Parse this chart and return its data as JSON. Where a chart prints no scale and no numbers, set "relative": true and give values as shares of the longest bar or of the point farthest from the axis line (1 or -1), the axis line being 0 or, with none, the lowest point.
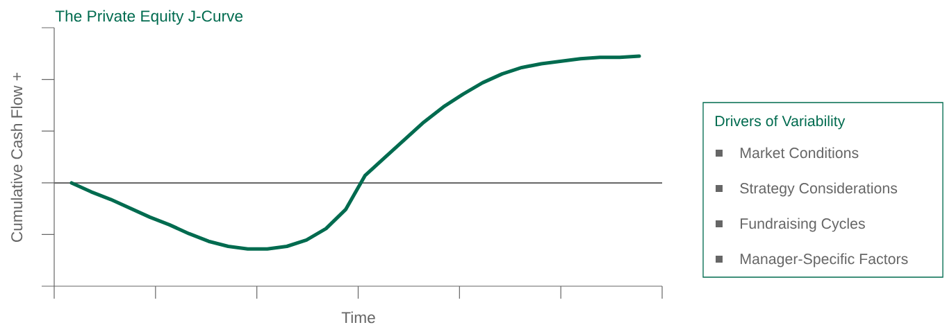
{
  "chart_data": {
    "type": "line",
    "relative": true,
    "title": "The Private Equity J-Curve",
    "xlabel": "Time",
    "ylabel": "Cumulative Cash Flow +",
    "categories": [
      null,
      null,
      null,
      null,
      null,
      null,
      null,
      null,
      null,
      null,
      null,
      null,
      null,
      null,
      null,
      null,
      null,
      null,
      null,
      null,
      null,
      null,
      null,
      null,
      null,
      null,
      null,
      null,
      null,
      null
    ],
    "series": [
      {
        "color": "#006b4f",
        "values": [
          0,
          -0.07,
          -0.13,
          -0.2,
          -0.27,
          -0.33,
          -0.4,
          -0.46,
          -0.5,
          -0.52,
          -0.52,
          -0.5,
          -0.45,
          -0.36,
          -0.21,
          0.06,
          0.2,
          0.34,
          0.48,
          0.6,
          0.7,
          0.79,
          0.86,
          0.91,
          0.94,
          0.96,
          0.98,
          0.99,
          0.99,
          1
        ]
      }
    ],
    "marker": "none",
    "line_style": "solid",
    "grid": false,
    "annotations": [
      "Drivers of Variability",
      "Market Conditions",
      "Strategy Considerations",
      "Fundraising Cycles",
      "Manager-Specific Factors"
    ]
  }
}
